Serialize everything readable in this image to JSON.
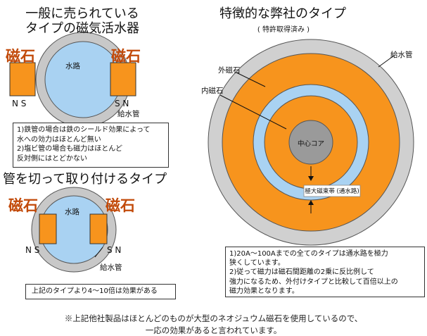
{
  "left_top": {
    "title_line1": "一般に売られている",
    "title_line2": "タイプの磁気活水器",
    "magnet_left": "磁石",
    "magnet_right": "磁石",
    "water_path": "水路",
    "pole_left": "N S",
    "pole_right": "S N",
    "pipe_label": "給水管",
    "box_lines": [
      "1)鉄管の場合は鉄のシールド効果によって",
      "   水への効力はほとんど無い",
      "2)塩ビ管の場合も磁力はほとんど",
      "   反対側にはとどかない"
    ]
  },
  "left_bottom": {
    "title": "管を切って取り付けるタイプ",
    "magnet_left": "磁石",
    "magnet_right": "磁石",
    "water_path": "水路",
    "pole_left": "N S",
    "pole_right": "S N",
    "pipe_label": "給水管",
    "box_text": "上記のタイプより4～10倍は効果がある"
  },
  "right": {
    "title": "特徴的な弊社のタイプ",
    "subtitle": "(   特許取得済み   )",
    "outer_magnet_label": "外磁石",
    "inner_magnet_label": "内磁石",
    "pipe_label": "給水管",
    "core_label": "中心コア",
    "path_label": "極大磁束帯 (通水路)",
    "box_lines": [
      "1)20A～100Aまでの全てのタイプは通水路を極力",
      "狭くしています。",
      "2)従って磁力は磁石間距離の2乗に反比例して",
      "強力になるため、外付けタイプと比較して百倍以上の",
      "磁力効果となります。"
    ]
  },
  "footnote": {
    "line1": "※上記他社製品はほとんどのものが大型のネオジュウム磁石を使用しているので、",
    "line2": "一応の効果があると言われています。"
  },
  "colors": {
    "magnet_orange": "#f7941d",
    "water_blue": "#a9d2f2",
    "pipe_gray": "#c8c8c8",
    "core_gray": "#9a9a9a",
    "label_red": "#c24a0a"
  }
}
